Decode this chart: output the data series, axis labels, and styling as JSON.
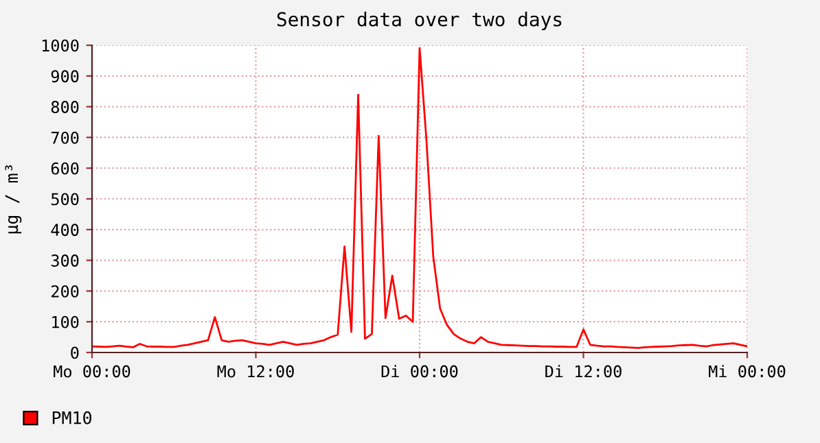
{
  "chart_data": {
    "type": "line",
    "title": "Sensor data over two days",
    "ylabel": "µg / m³",
    "categories": [
      "Mo 00:00",
      null,
      null,
      null,
      null,
      null,
      null,
      null,
      null,
      null,
      null,
      null,
      null,
      null,
      null,
      null,
      null,
      null,
      null,
      null,
      null,
      null,
      null,
      null,
      "Mo 12:00",
      null,
      null,
      null,
      null,
      null,
      null,
      null,
      null,
      null,
      null,
      null,
      null,
      null,
      null,
      null,
      null,
      null,
      null,
      null,
      null,
      null,
      null,
      null,
      "Di 00:00",
      null,
      null,
      null,
      null,
      null,
      null,
      null,
      null,
      null,
      null,
      null,
      null,
      null,
      null,
      null,
      null,
      null,
      null,
      null,
      null,
      null,
      null,
      null,
      "Di 12:00",
      null,
      null,
      null,
      null,
      null,
      null,
      null,
      null,
      null,
      null,
      null,
      null,
      null,
      null,
      null,
      null,
      null,
      null,
      null,
      null,
      null,
      null,
      null,
      "Mi 00:00"
    ],
    "series": [
      {
        "name": "PM10",
        "color": "#ff0000",
        "values": [
          20,
          19,
          18,
          20,
          22,
          19,
          17,
          28,
          20,
          19,
          19,
          18,
          18,
          22,
          25,
          30,
          35,
          40,
          115,
          40,
          35,
          38,
          40,
          35,
          30,
          28,
          25,
          30,
          35,
          30,
          25,
          28,
          30,
          35,
          40,
          50,
          58,
          345,
          67,
          839,
          45,
          60,
          705,
          112,
          250,
          110,
          120,
          100,
          991,
          692,
          312,
          143,
          90,
          60,
          45,
          35,
          30,
          50,
          35,
          30,
          25,
          24,
          23,
          22,
          21,
          21,
          20,
          20,
          19,
          19,
          18,
          18,
          75,
          25,
          22,
          20,
          20,
          18,
          17,
          16,
          15,
          17,
          18,
          19,
          20,
          21,
          23,
          24,
          25,
          22,
          20,
          24,
          26,
          28,
          30,
          25,
          20
        ]
      }
    ],
    "ylim": [
      0,
      1000
    ],
    "yticks": [
      0,
      100,
      200,
      300,
      400,
      500,
      600,
      700,
      800,
      900,
      1000
    ],
    "grid": true,
    "legend": "bottom left",
    "line_style": "solid",
    "marker": "none"
  }
}
